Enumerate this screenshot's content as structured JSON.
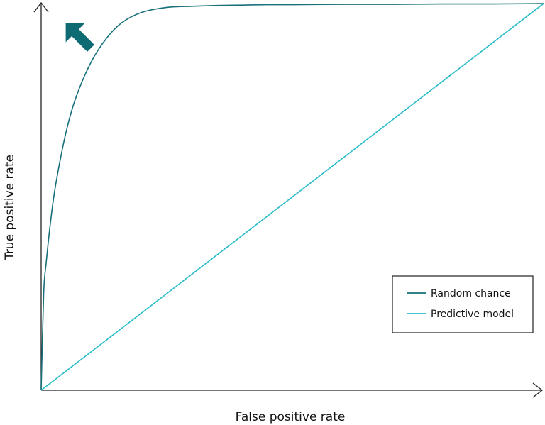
{
  "chart_data": {
    "type": "line",
    "title": "",
    "xlabel": "False positive rate",
    "ylabel": "True positive rate",
    "xlim": [
      0,
      1
    ],
    "ylim": [
      0,
      1
    ],
    "grid": false,
    "legend_position": "bottom-right",
    "series": [
      {
        "name": "Random chance",
        "color": "#17707a",
        "x": [
          0,
          0.005,
          0.01,
          0.02,
          0.03,
          0.05,
          0.07,
          0.1,
          0.13,
          0.16,
          0.2,
          0.25,
          0.3,
          0.35,
          0.4,
          0.45,
          0.5,
          0.6,
          0.7,
          0.8,
          0.9,
          1.0
        ],
        "y": [
          0,
          0.25,
          0.33,
          0.45,
          0.54,
          0.67,
          0.76,
          0.85,
          0.91,
          0.95,
          0.977,
          0.99,
          0.993,
          0.995,
          0.996,
          0.997,
          0.997,
          0.998,
          0.998,
          0.999,
          0.999,
          1.0
        ]
      },
      {
        "name": "Predictive model",
        "color": "#27bcc8",
        "x": [
          0,
          1
        ],
        "y": [
          0,
          1
        ]
      }
    ],
    "annotations": [
      {
        "type": "arrow",
        "direction": "up-left",
        "color": "#0e6a73"
      }
    ]
  }
}
